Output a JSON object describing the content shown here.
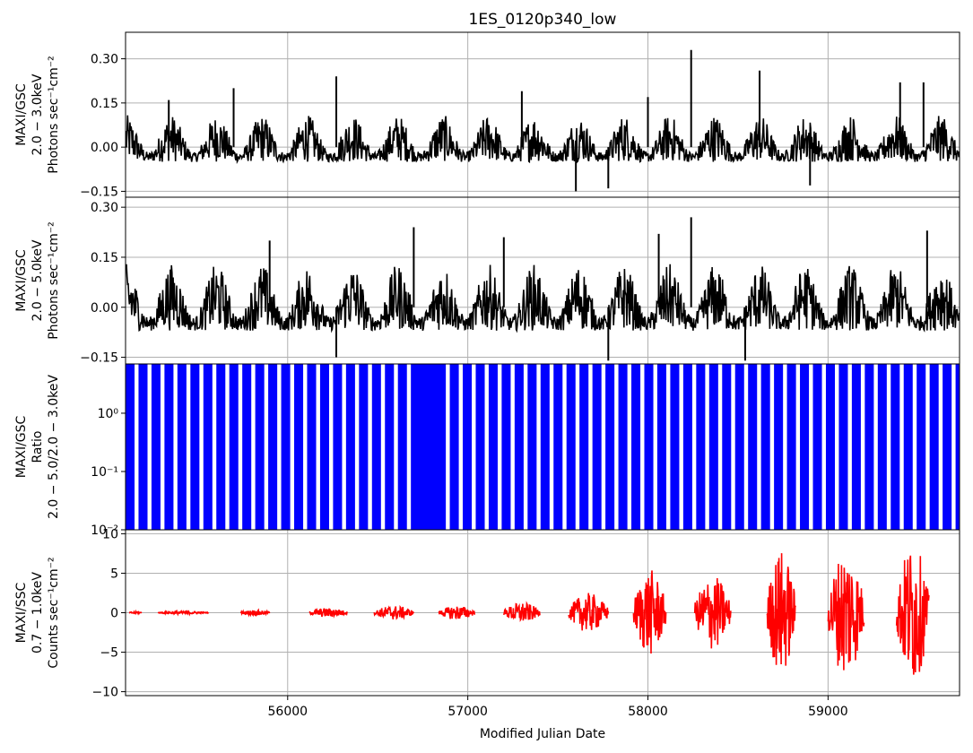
{
  "title": "1ES_0120p340_low",
  "xlabel": "Modified Julian Date",
  "colors": {
    "gsc": "#000000",
    "ratio": "#0000ff",
    "ssc": "#ff0000",
    "grid": "#b0b0b0"
  },
  "chart_data": [
    {
      "panel": "gsc_2_3",
      "type": "line",
      "title": "1ES_0120p340_low",
      "xlim": [
        55100,
        59730
      ],
      "ylim": [
        -0.17,
        0.39
      ],
      "yticks": [
        -0.15,
        0.0,
        0.15,
        0.3
      ],
      "ytick_labels": [
        "−0.15",
        "0.00",
        "0.15",
        "0.30"
      ],
      "ylabel_lines": [
        "MAXI/GSC",
        "2.0 − 3.0keV",
        "Photons sec⁻¹cm⁻²"
      ],
      "grid": true,
      "color": "#000000",
      "range": [
        -0.05,
        0.11
      ],
      "spikes": [
        {
          "x": 55340,
          "y": 0.16
        },
        {
          "x": 55700,
          "y": 0.2
        },
        {
          "x": 56270,
          "y": 0.24
        },
        {
          "x": 57300,
          "y": 0.19
        },
        {
          "x": 57600,
          "y": -0.15
        },
        {
          "x": 57780,
          "y": -0.14
        },
        {
          "x": 58000,
          "y": 0.17
        },
        {
          "x": 58240,
          "y": 0.33
        },
        {
          "x": 58620,
          "y": 0.26
        },
        {
          "x": 59400,
          "y": 0.22
        },
        {
          "x": 59530,
          "y": 0.22
        },
        {
          "x": 58900,
          "y": -0.13
        }
      ]
    },
    {
      "panel": "gsc_2_5",
      "type": "line",
      "xlim": [
        55100,
        59730
      ],
      "ylim": [
        -0.17,
        0.33
      ],
      "yticks": [
        -0.15,
        0.0,
        0.15,
        0.3
      ],
      "ytick_labels": [
        "−0.15",
        "0.00",
        "0.15",
        "0.30"
      ],
      "ylabel_lines": [
        "MAXI/GSC",
        "2.0 − 5.0keV",
        "Photons sec⁻¹cm⁻²"
      ],
      "grid": true,
      "color": "#000000",
      "range": [
        -0.07,
        0.13
      ],
      "spikes": [
        {
          "x": 56700,
          "y": 0.24
        },
        {
          "x": 57200,
          "y": 0.21
        },
        {
          "x": 58060,
          "y": 0.22
        },
        {
          "x": 58240,
          "y": 0.27
        },
        {
          "x": 58540,
          "y": -0.16
        },
        {
          "x": 59550,
          "y": 0.23
        },
        {
          "x": 56270,
          "y": -0.15
        },
        {
          "x": 57780,
          "y": -0.16
        },
        {
          "x": 55900,
          "y": 0.2
        }
      ]
    },
    {
      "panel": "ratio",
      "type": "bar",
      "scale": "log",
      "xlim": [
        55100,
        59730
      ],
      "ylim": [
        0.01,
        7
      ],
      "yticks": [
        0.01,
        0.1,
        1
      ],
      "ytick_labels": [
        "10⁻²",
        "10⁻¹",
        "10⁰"
      ],
      "ylabel_lines": [
        "MAXI/GSC",
        "Ratio",
        "2.0 − 5.0/2.0 − 3.0keV"
      ],
      "grid": false,
      "color": "#0000ff",
      "gap_spacing_days": 72,
      "gap_width_days": 22,
      "gap_free_intervals": [
        [
          56680,
          56830
        ]
      ]
    },
    {
      "panel": "ssc_0.7_1",
      "type": "line",
      "xlim": [
        55100,
        59730
      ],
      "ylim": [
        -10.5,
        10.5
      ],
      "yticks": [
        -10,
        -5,
        0,
        5,
        10
      ],
      "ytick_labels": [
        "−10",
        "−5",
        "0",
        "5",
        "10"
      ],
      "ylabel_lines": [
        "MAXI/SSC",
        "0.7 − 1.0keV",
        "Counts sec⁻¹cm⁻²"
      ],
      "grid": true,
      "color": "#ff0000",
      "segments": [
        {
          "start": 55120,
          "end": 55190,
          "amp": 0.15
        },
        {
          "start": 55280,
          "end": 55560,
          "amp": 0.2
        },
        {
          "start": 55740,
          "end": 55900,
          "amp": 0.35
        },
        {
          "start": 56120,
          "end": 56330,
          "amp": 0.6
        },
        {
          "start": 56480,
          "end": 56700,
          "amp": 0.9
        },
        {
          "start": 56840,
          "end": 57040,
          "amp": 0.9
        },
        {
          "start": 57200,
          "end": 57400,
          "amp": 1.3
        },
        {
          "start": 57560,
          "end": 57780,
          "amp": 2.5
        },
        {
          "start": 57920,
          "end": 58100,
          "amp": 5.5
        },
        {
          "start": 58260,
          "end": 58460,
          "amp": 4.8
        },
        {
          "start": 58660,
          "end": 58820,
          "amp": 8.0
        },
        {
          "start": 59000,
          "end": 59200,
          "amp": 8.2
        },
        {
          "start": 59380,
          "end": 59560,
          "amp": 9.0
        }
      ]
    }
  ],
  "xaxis": {
    "ticks": [
      56000,
      57000,
      58000,
      59000
    ],
    "tick_labels": [
      "56000",
      "57000",
      "58000",
      "59000"
    ]
  }
}
